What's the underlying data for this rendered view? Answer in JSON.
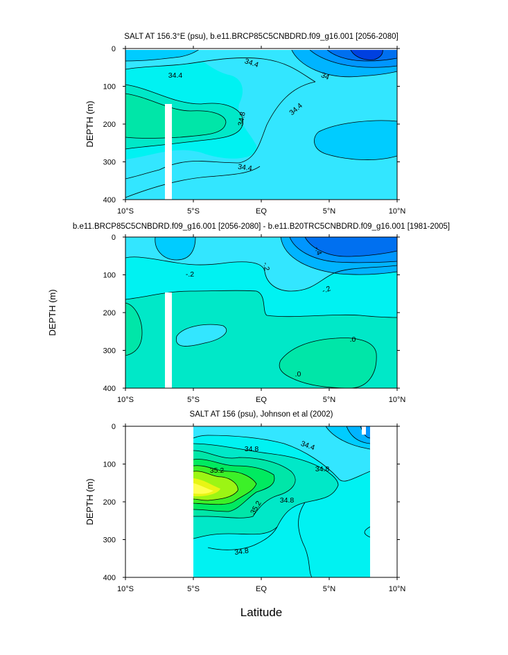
{
  "figure": {
    "xlabel": "Latitude"
  },
  "chart_data": [
    {
      "type": "heatmap",
      "title": "SALT AT 156.3°E (psu), b.e11.BRCP85C5CNBDRD.f09_g16.001 [2056-2080]",
      "xlabel": "",
      "ylabel": "DEPTH (m)",
      "xlim": [
        -10,
        10
      ],
      "ylim": [
        400,
        0
      ],
      "x_ticks": [
        "10°S",
        "5°S",
        "EQ",
        "5°N",
        "10°N"
      ],
      "y_ticks": [
        "0",
        "100",
        "200",
        "300",
        "400"
      ],
      "contour_labels": [
        {
          "x": -7.0,
          "y": 67,
          "value": "34.4"
        },
        {
          "x": -0.8,
          "y": 38,
          "value": "34.4"
        },
        {
          "x": 4.5,
          "y": 72,
          "value": "34"
        },
        {
          "x": -1.3,
          "y": 185,
          "value": "34.8"
        },
        {
          "x": 2.6,
          "y": 160,
          "value": "34.4"
        },
        {
          "x": -1.2,
          "y": 313,
          "value": "34.4"
        }
      ]
    },
    {
      "type": "heatmap",
      "title": "b.e11.BRCP85C5CNBDRD.f09_g16.001 [2056-2080] - b.e11.B20TRC5CNBDRD.f09_g16.001 [1981-2005]",
      "xlabel": "",
      "ylabel": "DEPTH (m)",
      "xlim": [
        -10,
        10
      ],
      "ylim": [
        400,
        0
      ],
      "x_ticks": [
        "10°S",
        "5°S",
        "EQ",
        "5°N",
        "10°N"
      ],
      "y_ticks": [
        "0",
        "100",
        "200",
        "300",
        "400"
      ],
      "contour_labels": [
        {
          "x": 4.0,
          "y": 30,
          "value": "-.4"
        },
        {
          "x": 0.2,
          "y": 82,
          "value": "-.2"
        },
        {
          "x": -5.3,
          "y": 98,
          "value": "-.2"
        },
        {
          "x": 4.8,
          "y": 137,
          "value": "-.2"
        },
        {
          "x": 6.6,
          "y": 272,
          "value": ".0"
        },
        {
          "x": 2.5,
          "y": 365,
          "value": ".0"
        }
      ]
    },
    {
      "type": "heatmap",
      "title": "SALT AT 156 (psu), Johnson et al (2002)",
      "xlabel": "",
      "ylabel": "DEPTH (m)",
      "xlim": [
        -10,
        10
      ],
      "ylim": [
        400,
        0
      ],
      "x_ticks": [
        "10°S",
        "5°S",
        "EQ",
        "5°N",
        "10°N"
      ],
      "y_ticks": [
        "0",
        "100",
        "200",
        "300",
        "400"
      ],
      "data_extent_x": [
        -5,
        8
      ],
      "contour_labels": [
        {
          "x": -0.8,
          "y": 55,
          "value": "34.8"
        },
        {
          "x": 3.3,
          "y": 62,
          "value": "34.4"
        },
        {
          "x": -3.6,
          "y": 120,
          "value": "35.2"
        },
        {
          "x": 4.4,
          "y": 115,
          "value": "34.8"
        },
        {
          "x": -0.3,
          "y": 222,
          "value": "35.2"
        },
        {
          "x": 1.8,
          "y": 200,
          "value": "34.8"
        },
        {
          "x": -1.4,
          "y": 325,
          "value": "34.8"
        }
      ]
    }
  ]
}
